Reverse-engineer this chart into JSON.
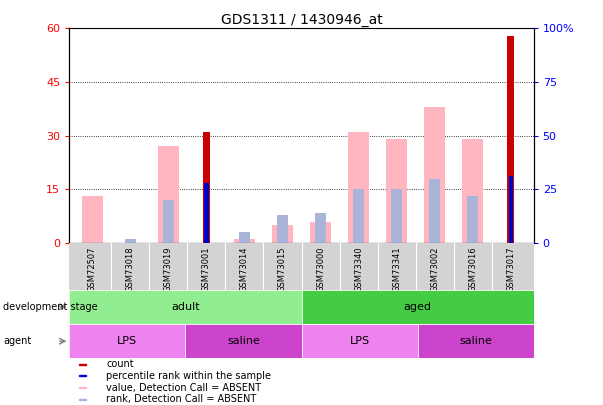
{
  "title": "GDS1311 / 1430946_at",
  "samples": [
    "GSM72507",
    "GSM73018",
    "GSM73019",
    "GSM73001",
    "GSM73014",
    "GSM73015",
    "GSM73000",
    "GSM73340",
    "GSM73341",
    "GSM73002",
    "GSM73016",
    "GSM73017"
  ],
  "count": [
    0,
    0,
    0,
    31,
    0,
    0,
    0,
    0,
    0,
    0,
    0,
    58
  ],
  "percentile_rank": [
    0,
    0,
    0,
    28,
    0,
    0,
    0,
    0,
    0,
    0,
    0,
    31
  ],
  "value_absent": [
    13,
    0,
    27,
    0,
    1,
    5,
    6,
    31,
    29,
    38,
    29,
    0
  ],
  "rank_absent": [
    0,
    2,
    20,
    0,
    5,
    13,
    14,
    25,
    25,
    30,
    22,
    0
  ],
  "development_stage": [
    {
      "label": "adult",
      "start": 0,
      "end": 6,
      "color": "#90ee90"
    },
    {
      "label": "aged",
      "start": 6,
      "end": 12,
      "color": "#44cc44"
    }
  ],
  "agent": [
    {
      "label": "LPS",
      "start": 0,
      "end": 3,
      "color": "#ee82ee"
    },
    {
      "label": "saline",
      "start": 3,
      "end": 6,
      "color": "#cc44cc"
    },
    {
      "label": "LPS",
      "start": 6,
      "end": 9,
      "color": "#ee82ee"
    },
    {
      "label": "saline",
      "start": 9,
      "end": 12,
      "color": "#cc44cc"
    }
  ],
  "left_ylim": [
    0,
    60
  ],
  "right_ylim": [
    0,
    100
  ],
  "left_yticks": [
    0,
    15,
    30,
    45,
    60
  ],
  "right_yticks": [
    0,
    25,
    50,
    75,
    100
  ],
  "count_color": "#cc0000",
  "percentile_color": "#0000cc",
  "value_absent_color": "#ffb6c1",
  "rank_absent_color": "#aab4d8",
  "chart_bg": "#ffffff",
  "sample_bg": "#d3d3d3"
}
